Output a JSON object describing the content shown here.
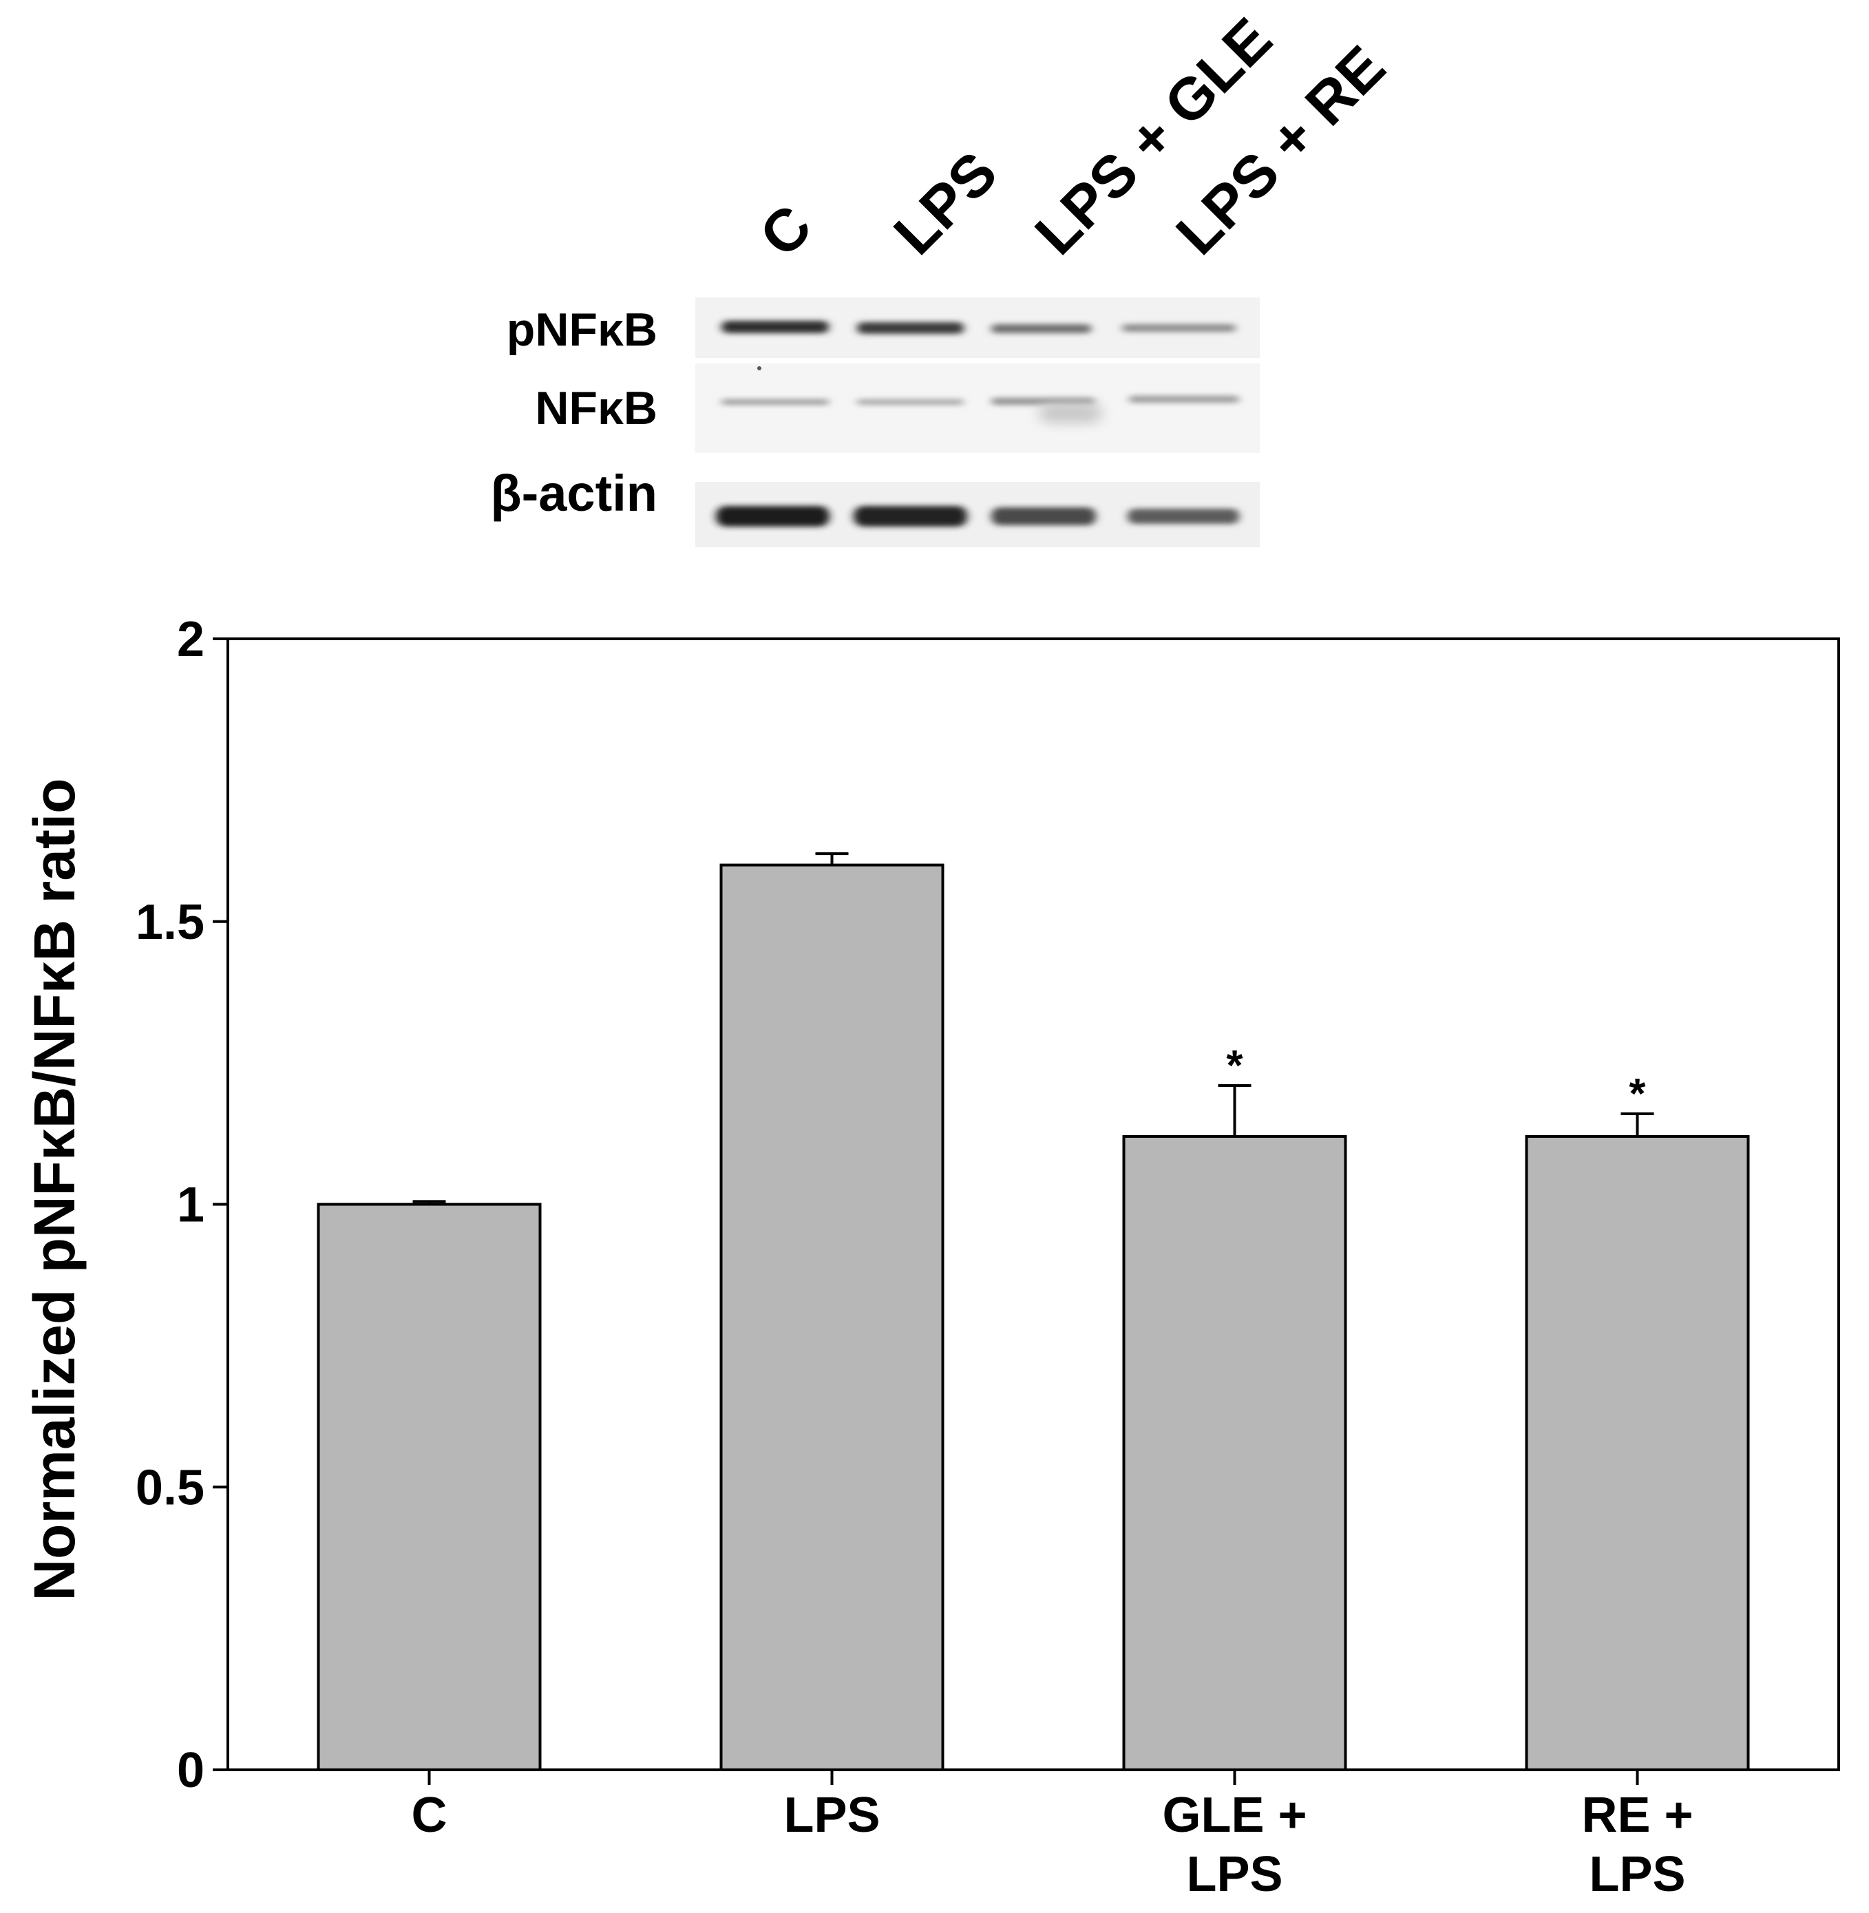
{
  "blot": {
    "lane_labels": [
      "C",
      "LPS",
      "LPS + GLE",
      "LPS + RE"
    ],
    "row_labels": [
      "pNFκB",
      "NFκB",
      "β-actin"
    ]
  },
  "chart_data": {
    "type": "bar",
    "categories": [
      [
        "C"
      ],
      [
        "LPS"
      ],
      [
        "GLE +",
        "LPS"
      ],
      [
        "RE +",
        "LPS"
      ]
    ],
    "values": [
      1.0,
      1.6,
      1.12,
      1.12
    ],
    "errors": [
      0.005,
      0.02,
      0.09,
      0.04
    ],
    "annotations": [
      "",
      "",
      "*",
      "*"
    ],
    "ylabel": "Normalized pNFκB/NFκB ratio",
    "ylim": [
      0,
      2
    ],
    "yticks": [
      0,
      0.5,
      1,
      1.5,
      2
    ],
    "ytick_labels": [
      "0",
      "0.5",
      "1",
      "1.5",
      "2"
    ],
    "bar_color": "#b7b7b7",
    "grid": false
  }
}
